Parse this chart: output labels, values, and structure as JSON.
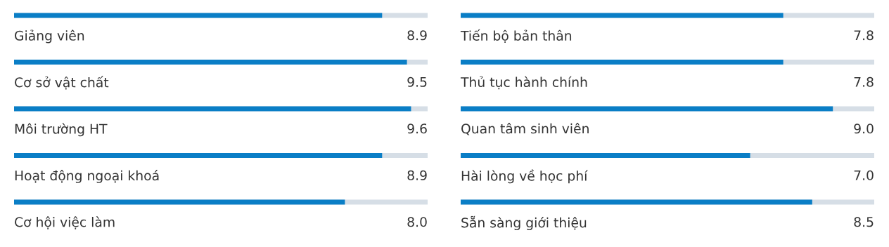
{
  "chart_data": [
    {
      "type": "bar",
      "orientation": "horizontal",
      "tick_labels": false,
      "xlim": [
        0,
        10
      ],
      "categories": [
        "Giảng viên",
        "Cơ sở vật chất",
        "Môi trường HT",
        "Hoạt động ngoại khoá",
        "Cơ hội việc làm"
      ],
      "series": [
        {
          "color": "#0a7ec6",
          "values": [
            8.9,
            9.5,
            9.6,
            8.9,
            8.0
          ],
          "value_labels": [
            "8.9",
            "9.5",
            "9.6",
            "8.9",
            "8.0"
          ]
        }
      ]
    },
    {
      "type": "bar",
      "orientation": "horizontal",
      "tick_labels": false,
      "xlim": [
        0,
        10
      ],
      "categories": [
        "Tiến bộ bản thân",
        "Thủ tục hành chính",
        "Quan tâm sinh viên",
        "Hài lòng về học phí",
        "Sẵn sàng giới thiệu"
      ],
      "series": [
        {
          "color": "#0a7ec6",
          "values": [
            7.8,
            7.8,
            9.0,
            7.0,
            8.5
          ],
          "value_labels": [
            "7.8",
            "7.8",
            "9.0",
            "7.0",
            "8.5"
          ]
        }
      ]
    }
  ]
}
